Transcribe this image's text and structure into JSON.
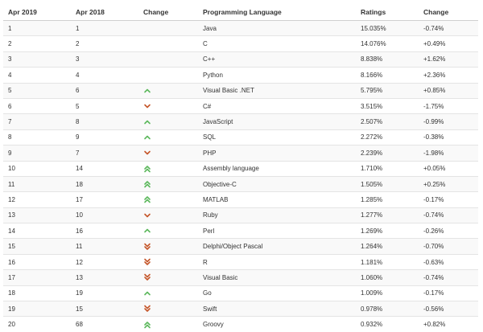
{
  "headers": {
    "apr2019": "Apr 2019",
    "apr2018": "Apr 2018",
    "change": "Change",
    "language": "Programming Language",
    "ratings": "Ratings",
    "ratings_change": "Change"
  },
  "colors": {
    "up": "#5cb85c",
    "down": "#c5562a"
  },
  "rows": [
    {
      "rank2019": "1",
      "rank2018": "1",
      "arrow": "none",
      "language": "Java",
      "rating": "15.035%",
      "delta": "-0.74%"
    },
    {
      "rank2019": "2",
      "rank2018": "2",
      "arrow": "none",
      "language": "C",
      "rating": "14.076%",
      "delta": "+0.49%"
    },
    {
      "rank2019": "3",
      "rank2018": "3",
      "arrow": "none",
      "language": "C++",
      "rating": "8.838%",
      "delta": "+1.62%"
    },
    {
      "rank2019": "4",
      "rank2018": "4",
      "arrow": "none",
      "language": "Python",
      "rating": "8.166%",
      "delta": "+2.36%"
    },
    {
      "rank2019": "5",
      "rank2018": "6",
      "arrow": "up",
      "language": "Visual Basic .NET",
      "rating": "5.795%",
      "delta": "+0.85%"
    },
    {
      "rank2019": "6",
      "rank2018": "5",
      "arrow": "down",
      "language": "C#",
      "rating": "3.515%",
      "delta": "-1.75%"
    },
    {
      "rank2019": "7",
      "rank2018": "8",
      "arrow": "up",
      "language": "JavaScript",
      "rating": "2.507%",
      "delta": "-0.99%"
    },
    {
      "rank2019": "8",
      "rank2018": "9",
      "arrow": "up",
      "language": "SQL",
      "rating": "2.272%",
      "delta": "-0.38%"
    },
    {
      "rank2019": "9",
      "rank2018": "7",
      "arrow": "down",
      "language": "PHP",
      "rating": "2.239%",
      "delta": "-1.98%"
    },
    {
      "rank2019": "10",
      "rank2018": "14",
      "arrow": "double-up",
      "language": "Assembly language",
      "rating": "1.710%",
      "delta": "+0.05%"
    },
    {
      "rank2019": "11",
      "rank2018": "18",
      "arrow": "double-up",
      "language": "Objective-C",
      "rating": "1.505%",
      "delta": "+0.25%"
    },
    {
      "rank2019": "12",
      "rank2018": "17",
      "arrow": "double-up",
      "language": "MATLAB",
      "rating": "1.285%",
      "delta": "-0.17%"
    },
    {
      "rank2019": "13",
      "rank2018": "10",
      "arrow": "down",
      "language": "Ruby",
      "rating": "1.277%",
      "delta": "-0.74%"
    },
    {
      "rank2019": "14",
      "rank2018": "16",
      "arrow": "up",
      "language": "Perl",
      "rating": "1.269%",
      "delta": "-0.26%"
    },
    {
      "rank2019": "15",
      "rank2018": "11",
      "arrow": "double-down",
      "language": "Delphi/Object Pascal",
      "rating": "1.264%",
      "delta": "-0.70%"
    },
    {
      "rank2019": "16",
      "rank2018": "12",
      "arrow": "double-down",
      "language": "R",
      "rating": "1.181%",
      "delta": "-0.63%"
    },
    {
      "rank2019": "17",
      "rank2018": "13",
      "arrow": "double-down",
      "language": "Visual Basic",
      "rating": "1.060%",
      "delta": "-0.74%"
    },
    {
      "rank2019": "18",
      "rank2018": "19",
      "arrow": "up",
      "language": "Go",
      "rating": "1.009%",
      "delta": "-0.17%"
    },
    {
      "rank2019": "19",
      "rank2018": "15",
      "arrow": "double-down",
      "language": "Swift",
      "rating": "0.978%",
      "delta": "-0.56%"
    },
    {
      "rank2019": "20",
      "rank2018": "68",
      "arrow": "double-up",
      "language": "Groovy",
      "rating": "0.932%",
      "delta": "+0.82%"
    }
  ]
}
